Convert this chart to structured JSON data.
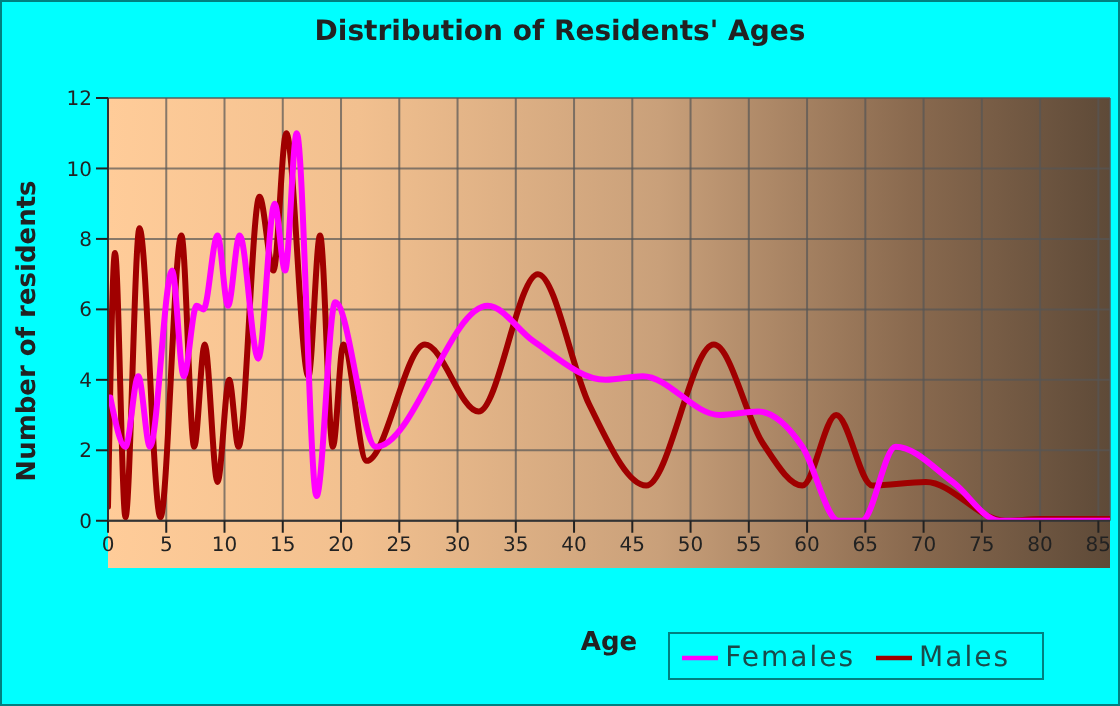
{
  "chart_data": {
    "type": "line",
    "title": "Distribution of Residents' Ages",
    "xlabel": "Age",
    "ylabel": "Number of residents",
    "xlim": [
      0,
      86
    ],
    "xticks": [
      0,
      5,
      10,
      15,
      20,
      25,
      30,
      35,
      40,
      45,
      50,
      55,
      60,
      65,
      70,
      75,
      80,
      85
    ],
    "ylim": [
      0,
      12
    ],
    "yticks": [
      0,
      2,
      4,
      6,
      8,
      10,
      12
    ],
    "grid": true,
    "legend": "bottom right",
    "marker": "none",
    "line_style": "solid",
    "series": [
      {
        "name": "Males",
        "color": "#a00000",
        "x": [
          0,
          0.6,
          1.5,
          2.7,
          4.5,
          6.3,
          7.4,
          8.3,
          9.4,
          10.4,
          11.2,
          13,
          14.2,
          15.3,
          17.2,
          18.2,
          19.3,
          20.2,
          22.2,
          27.2,
          31.8,
          36.9,
          41.3,
          46.2,
          52,
          56.2,
          59.6,
          62.5,
          65.6,
          70.2,
          77,
          80,
          86
        ],
        "values": [
          0.4,
          7.6,
          0.1,
          8.3,
          0.1,
          8.1,
          2.1,
          5,
          1.1,
          4,
          2.1,
          9.2,
          7.1,
          11,
          4.1,
          8.1,
          2.1,
          5,
          1.7,
          5,
          3.1,
          7,
          3.3,
          1,
          5,
          2.2,
          1,
          3,
          1,
          1.1,
          0,
          0.05,
          0.05
        ]
      },
      {
        "name": "Females",
        "color": "#ff00ff",
        "x": [
          0.2,
          1.5,
          2.6,
          3.6,
          5.5,
          6.5,
          7.6,
          8.2,
          9.4,
          10.3,
          11.3,
          12.9,
          14.3,
          15.2,
          16.2,
          17.9,
          19.5,
          23,
          32.6,
          36.5,
          42.7,
          45.9,
          52.5,
          55.8,
          59.6,
          62.7,
          64.7,
          67.6,
          72.5,
          76.5,
          86
        ],
        "values": [
          3.5,
          2.1,
          4.1,
          2.1,
          7.1,
          4.1,
          6.1,
          6,
          8.1,
          6.1,
          8.1,
          4.6,
          9,
          7.1,
          11,
          0.7,
          6.2,
          2.1,
          6.1,
          5.1,
          4,
          4.1,
          3,
          3.1,
          2.1,
          0,
          0,
          2.1,
          1.1,
          0,
          0
        ]
      }
    ]
  }
}
